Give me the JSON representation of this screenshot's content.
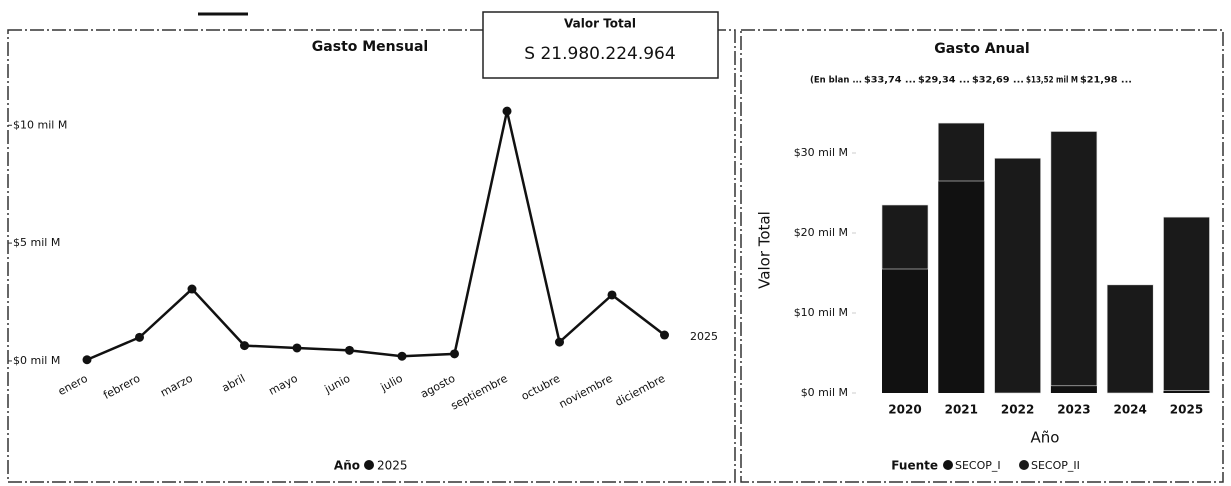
{
  "card": {
    "title": "Valor Total",
    "value": "S 21.980.224.964"
  },
  "chart_data": [
    {
      "type": "line",
      "title": "Gasto Mensual",
      "categories": [
        "enero",
        "febrero",
        "marzo",
        "abril",
        "mayo",
        "junio",
        "julio",
        "agosto",
        "septiembre",
        "octubre",
        "noviembre",
        "diciembre"
      ],
      "series": [
        {
          "name": "2025",
          "color": "#111111",
          "values": [
            0.05,
            1.0,
            3.05,
            0.65,
            0.55,
            0.45,
            0.2,
            0.3,
            10.6,
            0.8,
            2.8,
            1.1
          ]
        }
      ],
      "ylim": [
        -0.3,
        14
      ],
      "yticks": [
        {
          "value": 0,
          "label": "$0 mil M"
        },
        {
          "value": 5,
          "label": "$5 mil M"
        },
        {
          "value": 10,
          "label": "$10 mil M"
        }
      ],
      "legend_title": "Año"
    },
    {
      "type": "bar",
      "stacked": true,
      "title": "Gasto Anual",
      "categories": [
        "2020",
        "2021",
        "2022",
        "2023",
        "2024",
        "2025"
      ],
      "series": [
        {
          "name": "SECOP_I",
          "color": "#111111",
          "values": [
            15.5,
            26.5,
            0,
            0.9,
            0,
            0.3
          ]
        },
        {
          "name": "SECOP_II",
          "color": "#1a1a1a",
          "values": [
            8,
            7.24,
            29.34,
            31.79,
            13.52,
            21.68
          ]
        }
      ],
      "ylim": [
        0,
        36
      ],
      "yticks": [
        {
          "value": 0,
          "label": "$0 mil M"
        },
        {
          "value": 10,
          "label": "$10 mil M"
        },
        {
          "value": 20,
          "label": "$20 mil M"
        },
        {
          "value": 30,
          "label": "$30 mil M"
        }
      ],
      "y_label": "Valor Total",
      "x_label": "Año",
      "legend_title": "Fuente",
      "annotations": [
        "(En blan ...",
        "$33,74 ...",
        "$29,34 ...",
        "$32,69 ...",
        "$13,52 mil M",
        "$21,98 ..."
      ]
    }
  ]
}
